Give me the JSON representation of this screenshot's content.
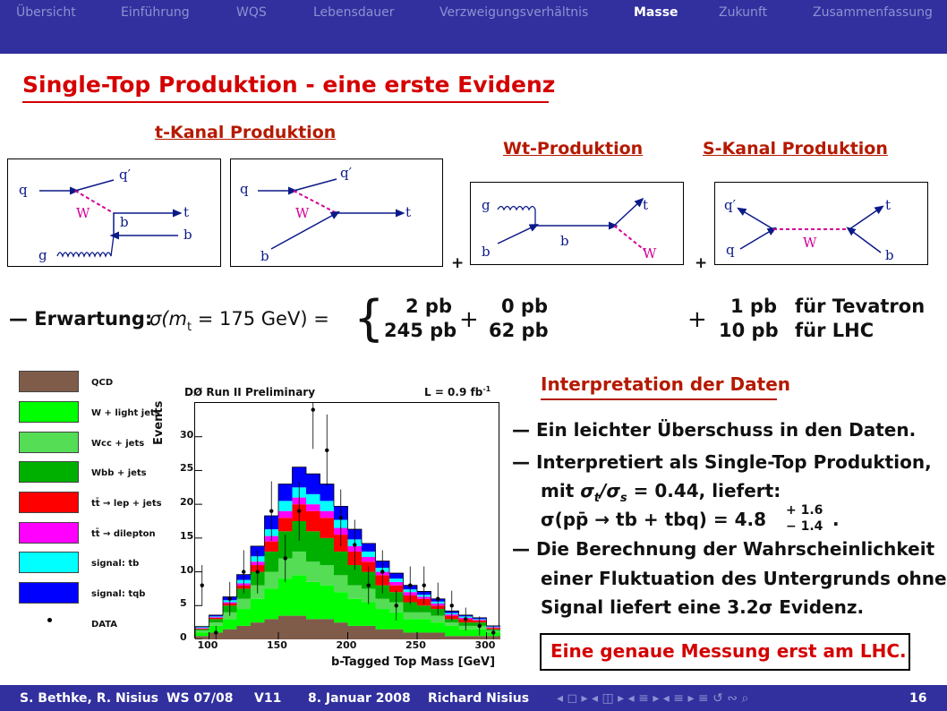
{
  "nav": {
    "items": [
      "Übersicht",
      "Einführung",
      "WQS",
      "Lebensdauer",
      "Verzweigungsverhältnis",
      "Masse",
      "Zukunft",
      "Zusammenfassung"
    ],
    "active": "Masse"
  },
  "slide": {
    "title": "Single-Top Produktion - eine erste Evidenz",
    "sections": {
      "t_kanal": "t-Kanal Produktion",
      "wt": "Wt-Produktion",
      "s_kanal": "S-Kanal Produktion"
    },
    "diagram_labels": {
      "q": "q",
      "q_prime": "q′",
      "W": "W",
      "b": "b",
      "t": "t",
      "g": "g"
    },
    "plus": "+",
    "expectation": {
      "prefix": "— Erwartung:",
      "formula": "σ(m",
      "formula_sub": "t",
      "formula_rest": " = 175 GeV) =",
      "t_tev": "2 pb",
      "t_lhc": "245 pb",
      "plus1": "+",
      "wt_tev": "0 pb",
      "wt_lhc": "62 pb",
      "plus2": "+",
      "s_tev": "1 pb",
      "s_lhc": "10 pb",
      "tev_label": "für Tevatron",
      "lhc_label": "für LHC"
    }
  },
  "legend": [
    {
      "label": "QCD",
      "color": "#7f5c4a"
    },
    {
      "label": "W + light jets",
      "color": "#00ff00"
    },
    {
      "label": "Wcc + jets",
      "color": "#55dd55"
    },
    {
      "label": "Wbb + jets",
      "color": "#00b000"
    },
    {
      "label": "tt̄ → lep + jets",
      "color": "#ff0000"
    },
    {
      "label": "tt̄ → dilepton",
      "color": "#ff00ff"
    },
    {
      "label": "signal: tb",
      "color": "#00ffff"
    },
    {
      "label": "signal: tqb",
      "color": "#0000ff"
    },
    {
      "label": "DATA",
      "color": "#000000"
    }
  ],
  "chart_data": {
    "type": "bar",
    "title": "DØ Run II Preliminary",
    "lumi": "L = 0.9 fb",
    "lumi_sup": "-1",
    "xlabel": "b-Tagged Top Mass [GeV]",
    "ylabel": "Events",
    "xlim": [
      90,
      310
    ],
    "ylim": [
      0,
      35
    ],
    "xticks": [
      100,
      150,
      200,
      250,
      300
    ],
    "yticks": [
      0,
      5,
      10,
      15,
      20,
      25,
      30
    ],
    "bin_edges": [
      90,
      100,
      110,
      120,
      130,
      140,
      150,
      160,
      170,
      180,
      190,
      200,
      210,
      220,
      230,
      240,
      250,
      260,
      270,
      280,
      290,
      300,
      310
    ],
    "stack": [
      {
        "name": "QCD",
        "values": [
          0.5,
          1,
          1.5,
          2,
          2.5,
          3,
          3.5,
          3.5,
          3,
          3,
          2.5,
          2,
          2,
          1.5,
          1.5,
          1,
          1,
          1,
          0.5,
          0.5,
          0.5,
          0.5
        ]
      },
      {
        "name": "W + light jets",
        "values": [
          0.5,
          1,
          1.5,
          2.5,
          3.5,
          4.5,
          5.5,
          6,
          5.5,
          5,
          4.5,
          4,
          3.5,
          3,
          2.5,
          2,
          2,
          1.5,
          1.5,
          1,
          1,
          0.5
        ]
      },
      {
        "name": "Wcc + jets",
        "values": [
          0.3,
          0.5,
          1,
          1.5,
          2,
          2.5,
          3,
          3.5,
          3,
          3,
          2.5,
          2,
          2,
          1.5,
          1.5,
          1,
          1,
          1,
          0.5,
          0.5,
          0.5,
          0.3
        ]
      },
      {
        "name": "Wbb + jets",
        "values": [
          0.2,
          0.5,
          1,
          1.5,
          2,
          3,
          4,
          4.5,
          4.5,
          4,
          3.5,
          3,
          2.5,
          2,
          1.5,
          1.5,
          1,
          1,
          0.5,
          0.5,
          0.5,
          0.2
        ]
      },
      {
        "name": "tt̄ → lep + jets",
        "values": [
          0.1,
          0.2,
          0.3,
          0.5,
          1,
          1.5,
          2,
          2.5,
          3,
          3,
          2.5,
          2,
          1.5,
          1.5,
          1,
          1,
          1,
          0.5,
          0.5,
          0.5,
          0.3,
          0.2
        ]
      },
      {
        "name": "tt̄ → dilepton",
        "values": [
          0.1,
          0.1,
          0.2,
          0.3,
          0.5,
          0.8,
          1,
          1,
          1,
          1,
          1,
          0.8,
          0.7,
          0.5,
          0.5,
          0.5,
          0.3,
          0.3,
          0.2,
          0.2,
          0.1,
          0.1
        ]
      },
      {
        "name": "signal: tb",
        "values": [
          0.1,
          0.1,
          0.3,
          0.5,
          0.8,
          1,
          1.5,
          1.5,
          1.5,
          1.5,
          1.2,
          1,
          0.8,
          0.6,
          0.5,
          0.4,
          0.3,
          0.3,
          0.2,
          0.2,
          0.1,
          0.1
        ]
      },
      {
        "name": "signal: tqb",
        "values": [
          0.1,
          0.2,
          0.5,
          0.8,
          1.5,
          2,
          2.5,
          3,
          3,
          2.5,
          2,
          1.5,
          1.2,
          1,
          0.8,
          0.6,
          0.5,
          0.4,
          0.3,
          0.2,
          0.2,
          0.1
        ]
      }
    ],
    "data_points": {
      "x": [
        95,
        105,
        115,
        125,
        135,
        145,
        155,
        165,
        175,
        185,
        195,
        205,
        215,
        225,
        235,
        245,
        255,
        265,
        275,
        285,
        295,
        305
      ],
      "y": [
        8,
        1,
        6,
        10,
        10,
        19,
        12,
        19,
        34,
        28,
        18,
        14,
        8,
        10,
        5,
        8,
        8,
        6,
        5,
        3,
        2,
        1
      ],
      "err": [
        3,
        1,
        2.5,
        3.2,
        3.2,
        4.4,
        3.5,
        4.4,
        5.8,
        5.3,
        4.2,
        3.7,
        2.8,
        3.2,
        2.2,
        2.8,
        2.8,
        2.4,
        2.2,
        1.7,
        1.4,
        1
      ]
    }
  },
  "interpretation": {
    "heading": "Interpretation der Daten",
    "l1": "— Ein leichter Überschuss in den Daten.",
    "l2": "— Interpretiert als Single-Top Produktion,",
    "l3a": "mit ",
    "l3b": "σ",
    "l3c": "t",
    "l3d": "/σ",
    "l3e": "s",
    "l3f": " = 0.44, liefert:",
    "l4a": "σ(pp̄ → tb + tbq) = 4.8",
    "l4_up": "+ 1.6",
    "l4_dn": "− 1.4",
    "l4_dot": ".",
    "l5": "— Die Berechnung der Wahrscheinlichkeit",
    "l6": "einer Fluktuation des Untergrunds ohne",
    "l7": "Signal liefert eine 3.2σ Evidenz.",
    "callout": "Eine genaue Messung erst am LHC."
  },
  "footer": {
    "authors": "S. Bethke, R. Nisius",
    "term": "WS 07/08",
    "lecture": "V11",
    "date": "8. Januar 2008",
    "presenter": "Richard Nisius",
    "page": "16",
    "nav_glyphs": "◂ ◻ ▸ ◂ ◫ ▸ ◂ ≡ ▸ ◂ ≡ ▸   ≡   ↺ ∾ ⌕"
  }
}
